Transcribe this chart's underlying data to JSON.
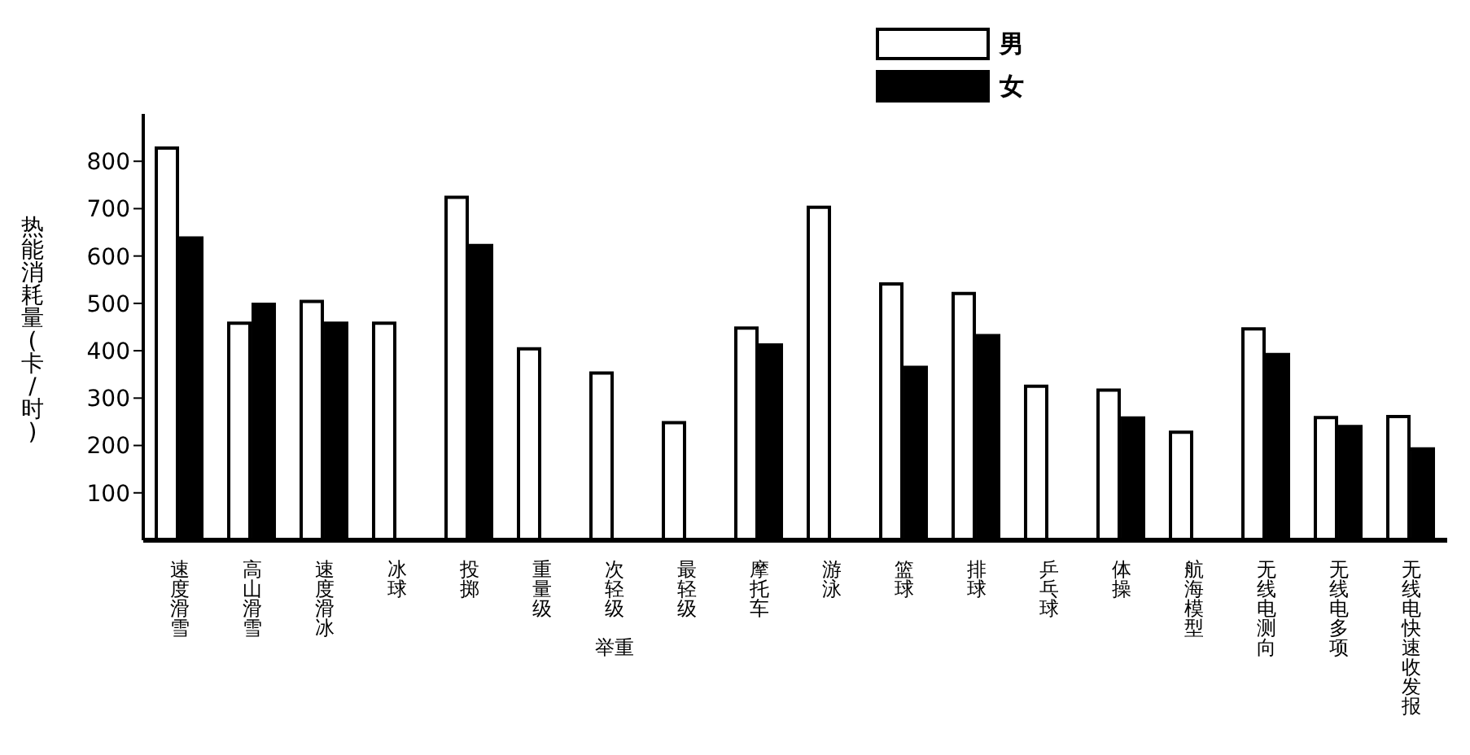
{
  "chart_data": {
    "type": "bar",
    "ylabel": "热能消耗量(卡/时)",
    "categories": [
      "速度滑雪",
      "高山滑雪",
      "速度滑冰",
      "冰球",
      "投掷",
      "重量级",
      "次轻级",
      "最轻级",
      "摩托车",
      "游泳",
      "篮球",
      "排球",
      "乒乓球",
      "体操",
      "航海模型",
      "无线电测向",
      "无线电多项",
      "无线电快速收发报"
    ],
    "series": [
      {
        "name": "男",
        "color": "#ffffff",
        "values": [
          828,
          458,
          504,
          458,
          724,
          404,
          353,
          248,
          448,
          703,
          541,
          521,
          325,
          317,
          228,
          446,
          259,
          261
        ]
      },
      {
        "name": "女",
        "color": "#000000",
        "values": [
          638,
          498,
          458,
          null,
          622,
          null,
          null,
          null,
          412,
          null,
          365,
          432,
          null,
          258,
          null,
          392,
          240,
          193
        ]
      }
    ],
    "annotations": [
      "举重"
    ],
    "ylim": [
      0,
      900
    ],
    "yticks": [
      100,
      200,
      300,
      400,
      500,
      600,
      700,
      800
    ],
    "grid": false,
    "legend": "top"
  }
}
